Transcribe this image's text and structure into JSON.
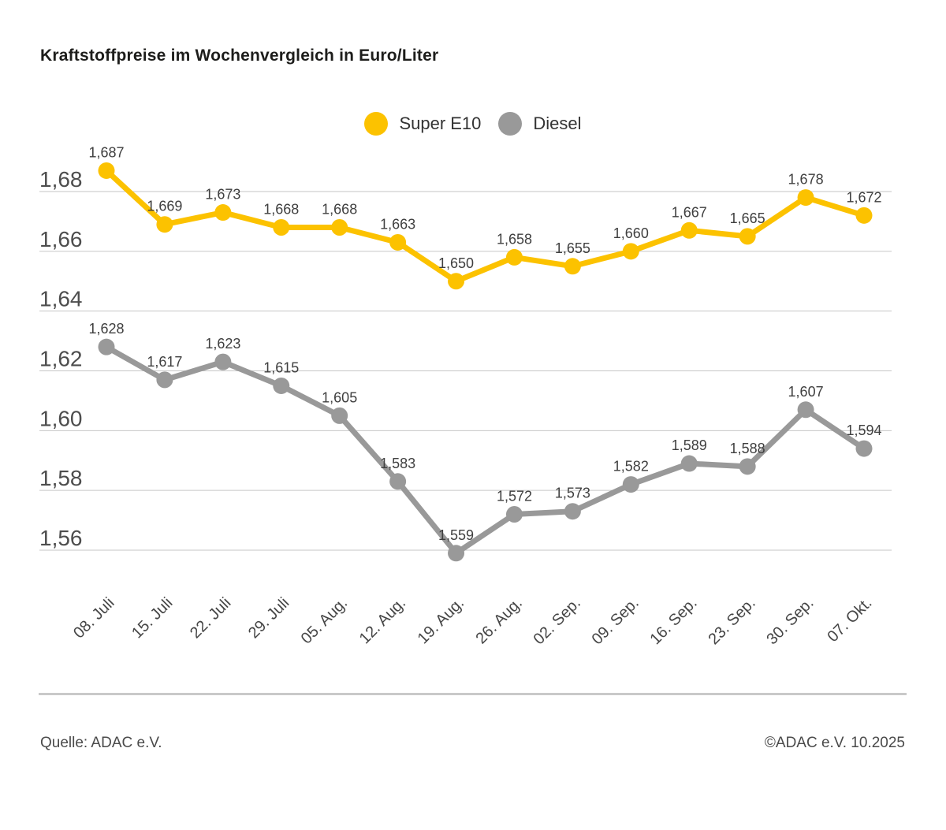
{
  "chart_data": {
    "type": "line",
    "title": "Kraftstoffpreise im Wochenvergleich in Euro/Liter",
    "xlabel": "",
    "ylabel": "",
    "x": [
      "08. Juli",
      "15. Juli",
      "22. Juli",
      "29. Juli",
      "05. Aug.",
      "12. Aug.",
      "19. Aug.",
      "26. Aug.",
      "02. Sep.",
      "09. Sep.",
      "16. Sep.",
      "23. Sep.",
      "30. Sep.",
      "07. Okt."
    ],
    "series": [
      {
        "name": "Super E10",
        "color": "#FCC200",
        "values": [
          1.687,
          1.669,
          1.673,
          1.668,
          1.668,
          1.663,
          1.65,
          1.658,
          1.655,
          1.66,
          1.667,
          1.665,
          1.678,
          1.672
        ],
        "labels": [
          "1,687",
          "1,669",
          "1,673",
          "1,668",
          "1,668",
          "1,663",
          "1,650",
          "1,658",
          "1,655",
          "1,660",
          "1,667",
          "1,665",
          "1,678",
          "1,672"
        ]
      },
      {
        "name": "Diesel",
        "color": "#999999",
        "values": [
          1.628,
          1.617,
          1.623,
          1.615,
          1.605,
          1.583,
          1.559,
          1.572,
          1.573,
          1.582,
          1.589,
          1.588,
          1.607,
          1.594
        ],
        "labels": [
          "1,628",
          "1,617",
          "1,623",
          "1,615",
          "1,605",
          "1,583",
          "1,559",
          "1,572",
          "1,573",
          "1,582",
          "1,589",
          "1,588",
          "1,607",
          "1,594"
        ]
      }
    ],
    "y_ticks": {
      "values": [
        1.68,
        1.66,
        1.64,
        1.62,
        1.6,
        1.58,
        1.56
      ],
      "labels": [
        "1,68",
        "1,66",
        "1,64",
        "1,62",
        "1,60",
        "1,58",
        "1,56"
      ]
    },
    "ylim": [
      1.545,
      1.692
    ],
    "grid": true,
    "legend_position": "top-center"
  },
  "footer": {
    "source": "Quelle: ADAC e.V.",
    "copyright": "©ADAC e.V. 10.2025"
  },
  "style": {
    "grid_color": "#c6c6c6",
    "divider_color": "#c9c9c9",
    "y_tick_color": "#4d4d4d",
    "x_tick_color": "#454545",
    "data_label_color": "#3f3f3f",
    "title_color": "#1d1d1b",
    "footer_color": "#4a4a4a"
  }
}
